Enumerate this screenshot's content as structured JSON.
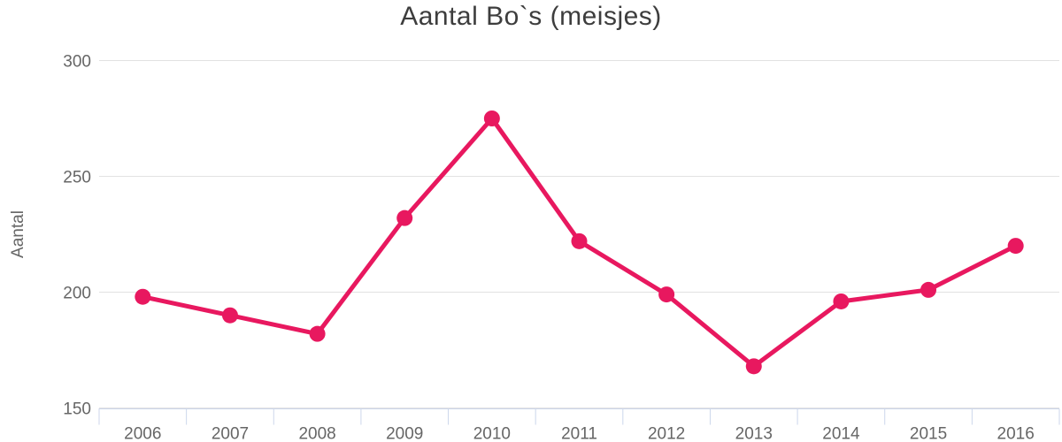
{
  "chart_data": {
    "type": "line",
    "title": "Aantal Bo`s (meisjes)",
    "xlabel": "",
    "ylabel": "Aantal",
    "categories": [
      "2006",
      "2007",
      "2008",
      "2009",
      "2010",
      "2011",
      "2012",
      "2013",
      "2014",
      "2015",
      "2016"
    ],
    "series": [
      {
        "name": "Aantal",
        "values": [
          198,
          190,
          182,
          232,
          275,
          222,
          199,
          168,
          196,
          201,
          220
        ]
      }
    ],
    "ylim": [
      150,
      300
    ],
    "yticks": [
      150,
      200,
      250,
      300
    ],
    "grid": true,
    "legend_position": "none",
    "colors": {
      "line": "#e8185f",
      "marker": "#e8185f",
      "gridline": "#e2e2e2",
      "axis_line": "#ccd6eb",
      "tick": "#ccd6eb",
      "title_text": "#3d3d3d",
      "label_text": "#666666",
      "background": "#ffffff"
    }
  }
}
